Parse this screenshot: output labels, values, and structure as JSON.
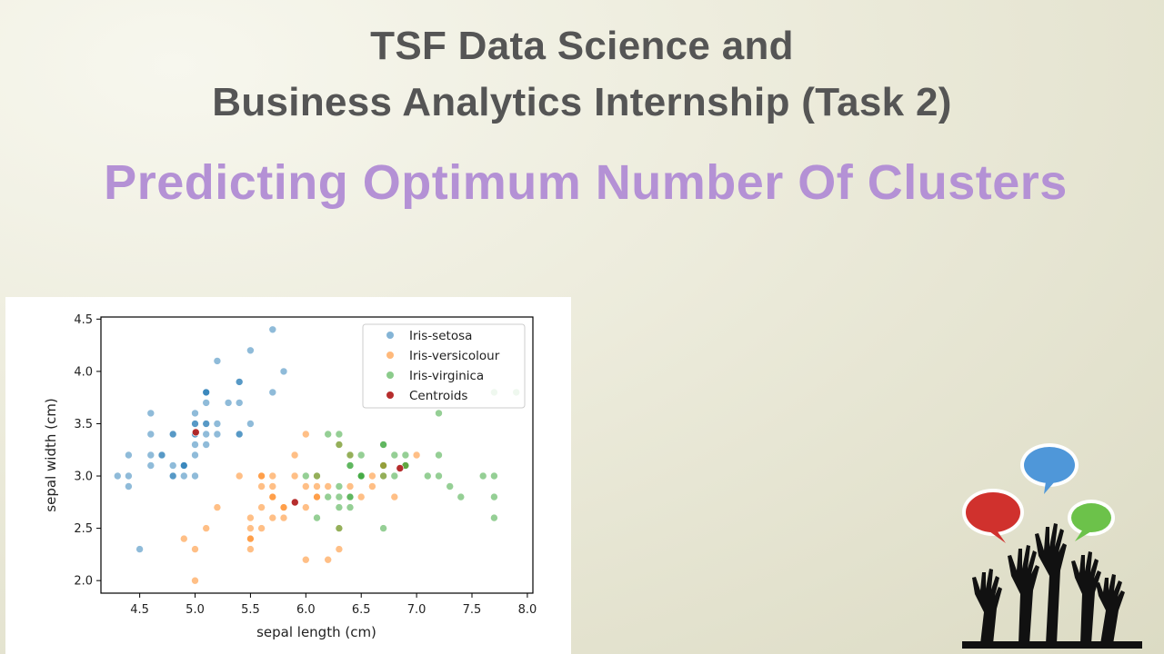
{
  "header": {
    "title_line_1": "TSF Data Science and",
    "title_line_2": "Business Analytics Internship (Task 2)",
    "subtitle": "Predicting Optimum Number Of Clusters"
  },
  "colors": {
    "title": "#555555",
    "subtitle": "#b491d5",
    "setosa": "#1f77b4",
    "versicolour": "#ff7f0e",
    "virginica": "#2ca02c",
    "centroids": "#b22222",
    "bubble_red": "#d0312d",
    "bubble_blue": "#4f97d9",
    "bubble_green": "#6cc24a"
  },
  "logo": {
    "icon": "raised-hands-speech-bubbles-icon"
  },
  "chart_data": {
    "type": "scatter",
    "title": "",
    "xlabel": "sepal length (cm)",
    "ylabel": "sepal width (cm)",
    "xlim": [
      4.15,
      8.05
    ],
    "ylim": [
      1.88,
      4.52
    ],
    "xticks": [
      "4.5",
      "5.0",
      "5.5",
      "6.0",
      "6.5",
      "7.0",
      "7.5",
      "8.0"
    ],
    "yticks": [
      "2.0",
      "2.5",
      "3.0",
      "3.5",
      "4.0",
      "4.5"
    ],
    "grid": false,
    "legend_position": "top-right",
    "series": [
      {
        "name": "Iris-setosa",
        "color": "#1f77b4",
        "points": [
          [
            5.1,
            3.5
          ],
          [
            4.9,
            3.0
          ],
          [
            4.7,
            3.2
          ],
          [
            4.6,
            3.1
          ],
          [
            5.0,
            3.6
          ],
          [
            5.4,
            3.9
          ],
          [
            4.6,
            3.4
          ],
          [
            5.0,
            3.4
          ],
          [
            4.4,
            2.9
          ],
          [
            4.9,
            3.1
          ],
          [
            5.4,
            3.7
          ],
          [
            4.8,
            3.4
          ],
          [
            4.8,
            3.0
          ],
          [
            4.3,
            3.0
          ],
          [
            5.8,
            4.0
          ],
          [
            5.7,
            4.4
          ],
          [
            5.4,
            3.9
          ],
          [
            5.1,
            3.5
          ],
          [
            5.7,
            3.8
          ],
          [
            5.1,
            3.8
          ],
          [
            5.4,
            3.4
          ],
          [
            5.1,
            3.7
          ],
          [
            4.6,
            3.6
          ],
          [
            5.1,
            3.3
          ],
          [
            4.8,
            3.4
          ],
          [
            5.0,
            3.0
          ],
          [
            5.0,
            3.4
          ],
          [
            5.2,
            3.5
          ],
          [
            5.2,
            3.4
          ],
          [
            4.7,
            3.2
          ],
          [
            4.8,
            3.1
          ],
          [
            5.4,
            3.4
          ],
          [
            5.2,
            4.1
          ],
          [
            5.5,
            4.2
          ],
          [
            4.9,
            3.1
          ],
          [
            5.0,
            3.2
          ],
          [
            5.5,
            3.5
          ],
          [
            4.9,
            3.1
          ],
          [
            4.4,
            3.0
          ],
          [
            5.1,
            3.4
          ],
          [
            5.0,
            3.5
          ],
          [
            4.5,
            2.3
          ],
          [
            4.4,
            3.2
          ],
          [
            5.0,
            3.5
          ],
          [
            5.1,
            3.8
          ],
          [
            4.8,
            3.0
          ],
          [
            5.1,
            3.8
          ],
          [
            4.6,
            3.2
          ],
          [
            5.3,
            3.7
          ],
          [
            5.0,
            3.3
          ]
        ]
      },
      {
        "name": "Iris-versicolour",
        "color": "#ff7f0e",
        "points": [
          [
            7.0,
            3.2
          ],
          [
            6.4,
            3.2
          ],
          [
            5.5,
            2.3
          ],
          [
            6.5,
            2.8
          ],
          [
            5.7,
            2.8
          ],
          [
            6.3,
            3.3
          ],
          [
            4.9,
            2.4
          ],
          [
            6.6,
            2.9
          ],
          [
            5.2,
            2.7
          ],
          [
            5.0,
            2.0
          ],
          [
            5.9,
            3.0
          ],
          [
            6.0,
            2.2
          ],
          [
            6.1,
            2.9
          ],
          [
            5.6,
            2.9
          ],
          [
            6.7,
            3.1
          ],
          [
            5.6,
            3.0
          ],
          [
            5.8,
            2.7
          ],
          [
            6.2,
            2.2
          ],
          [
            5.6,
            2.5
          ],
          [
            5.9,
            3.2
          ],
          [
            6.1,
            2.8
          ],
          [
            6.3,
            2.5
          ],
          [
            6.1,
            2.8
          ],
          [
            6.4,
            2.9
          ],
          [
            6.6,
            3.0
          ],
          [
            6.8,
            2.8
          ],
          [
            6.7,
            3.0
          ],
          [
            6.0,
            2.9
          ],
          [
            5.7,
            2.6
          ],
          [
            5.5,
            2.4
          ],
          [
            5.5,
            2.4
          ],
          [
            5.8,
            2.7
          ],
          [
            6.0,
            2.7
          ],
          [
            5.4,
            3.0
          ],
          [
            6.0,
            3.4
          ],
          [
            6.7,
            3.1
          ],
          [
            6.3,
            2.3
          ],
          [
            5.6,
            3.0
          ],
          [
            5.5,
            2.5
          ],
          [
            5.5,
            2.6
          ],
          [
            6.1,
            3.0
          ],
          [
            5.8,
            2.6
          ],
          [
            5.0,
            2.3
          ],
          [
            5.6,
            2.7
          ],
          [
            5.7,
            3.0
          ],
          [
            5.7,
            2.9
          ],
          [
            6.2,
            2.9
          ],
          [
            5.1,
            2.5
          ],
          [
            5.7,
            2.8
          ],
          [
            6.9,
            3.1
          ]
        ]
      },
      {
        "name": "Iris-virginica",
        "color": "#2ca02c",
        "points": [
          [
            6.3,
            3.3
          ],
          [
            7.1,
            3.0
          ],
          [
            6.3,
            2.9
          ],
          [
            6.5,
            3.0
          ],
          [
            7.6,
            3.0
          ],
          [
            7.3,
            2.9
          ],
          [
            6.7,
            2.5
          ],
          [
            7.2,
            3.6
          ],
          [
            6.5,
            3.2
          ],
          [
            6.4,
            2.7
          ],
          [
            6.8,
            3.0
          ],
          [
            6.4,
            3.2
          ],
          [
            6.5,
            3.0
          ],
          [
            7.7,
            3.8
          ],
          [
            7.7,
            2.6
          ],
          [
            6.9,
            3.2
          ],
          [
            7.7,
            2.8
          ],
          [
            6.3,
            2.7
          ],
          [
            6.7,
            3.3
          ],
          [
            7.2,
            3.2
          ],
          [
            6.2,
            2.8
          ],
          [
            6.1,
            3.0
          ],
          [
            6.4,
            2.8
          ],
          [
            7.2,
            3.0
          ],
          [
            7.4,
            2.8
          ],
          [
            7.9,
            3.8
          ],
          [
            6.4,
            2.8
          ],
          [
            6.3,
            2.8
          ],
          [
            6.1,
            2.6
          ],
          [
            7.7,
            3.0
          ],
          [
            6.3,
            3.4
          ],
          [
            6.4,
            3.1
          ],
          [
            6.0,
            3.0
          ],
          [
            6.9,
            3.1
          ],
          [
            6.7,
            3.1
          ],
          [
            6.9,
            3.1
          ],
          [
            6.8,
            3.2
          ],
          [
            6.7,
            3.3
          ],
          [
            6.7,
            3.0
          ],
          [
            6.3,
            2.5
          ],
          [
            6.5,
            3.0
          ],
          [
            6.2,
            3.4
          ],
          [
            6.4,
            3.1
          ]
        ]
      },
      {
        "name": "Centroids",
        "color": "#b22222",
        "points": [
          [
            5.006,
            3.418
          ],
          [
            5.9016,
            2.7484
          ],
          [
            6.85,
            3.0737
          ]
        ]
      }
    ]
  }
}
